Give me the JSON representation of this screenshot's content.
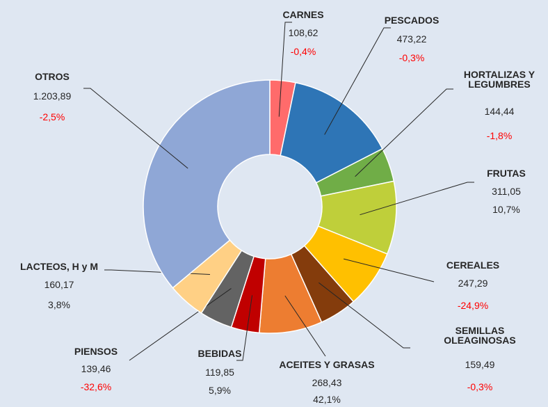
{
  "chart_data": {
    "type": "donut",
    "categories": [
      "CARNES",
      "PESCADOS",
      "HORTALIZAS Y LEGUMBRES",
      "FRUTAS",
      "CEREALES",
      "SEMILLAS OLEAGINOSAS",
      "ACEITES Y GRASAS",
      "BEBIDAS",
      "PIENSOS",
      "LACTEOS, H y M",
      "OTROS"
    ],
    "values": [
      108.62,
      473.22,
      144.44,
      311.05,
      247.29,
      159.49,
      268.43,
      119.85,
      139.46,
      160.17,
      1203.89
    ],
    "value_labels": [
      "108,62",
      "473,22",
      "144,44",
      "311,05",
      "247,29",
      "159,49",
      "268,43",
      "119,85",
      "139,46",
      "160,17",
      "1.203,89"
    ],
    "changes": [
      -0.4,
      -0.3,
      -1.8,
      10.7,
      -24.9,
      -0.3,
      42.1,
      5.9,
      -32.6,
      3.8,
      -2.5
    ],
    "change_labels": [
      "-0,4%",
      "-0,3%",
      "-1,8%",
      "10,7%",
      "-24,9%",
      "-0,3%",
      "42,1%",
      "5,9%",
      "-32,6%",
      "3,8%",
      "-2,5%"
    ],
    "colors": [
      "#ff6b6b",
      "#2e75b6",
      "#70ad47",
      "#bfcf3a",
      "#ffc000",
      "#843c0c",
      "#ed7d31",
      "#c00000",
      "#636363",
      "#ffd085",
      "#8fa7d6"
    ],
    "negative_color": "#ff0000"
  }
}
